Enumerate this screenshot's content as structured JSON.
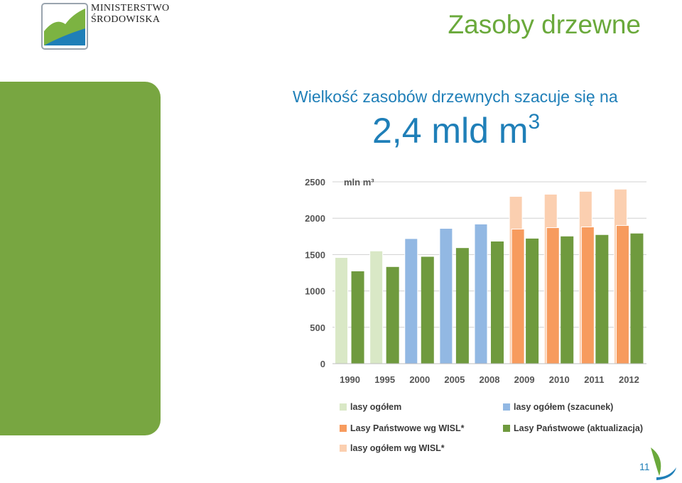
{
  "logo": {
    "line1": "MINISTERSTWO",
    "line2": "ŚRODOWISKA"
  },
  "title": "Zasoby drzewne",
  "subtitle": "Wielkość zasobów drzewnych szacuje się na",
  "value": {
    "text": "2,4 mld m",
    "sup": "3"
  },
  "page_number": "11",
  "colors": {
    "sidebar": "#78a641",
    "title": "#6aa93b",
    "accent_blue": "#1f7fb8"
  },
  "chart_data": {
    "type": "bar",
    "unit_label": "mln m³",
    "categories": [
      "1990",
      "1995",
      "2000",
      "2005",
      "2008",
      "2009",
      "2010",
      "2011",
      "2012"
    ],
    "ylim": [
      0,
      2500
    ],
    "yticks": [
      0,
      500,
      1000,
      1500,
      2000,
      2500
    ],
    "grid": true,
    "legend_position": "bottom",
    "series": [
      {
        "name": "lasy ogółem",
        "color": "#d9e8c6",
        "values": [
          1460,
          1550,
          null,
          null,
          null,
          null,
          null,
          null,
          null
        ]
      },
      {
        "name": "lasy ogółem (szacunek)",
        "color": "#92b8e3",
        "values": [
          null,
          null,
          1720,
          1860,
          1920,
          null,
          null,
          null,
          null
        ]
      },
      {
        "name": "lasy ogółem wg WISL*",
        "color": "#fbcfb0",
        "values": [
          null,
          null,
          null,
          null,
          null,
          2300,
          2330,
          2370,
          2400
        ]
      },
      {
        "name": "Lasy Państwowe wg WISL*",
        "color": "#f79b5e",
        "values": [
          null,
          null,
          null,
          null,
          null,
          1850,
          1870,
          1880,
          1900
        ]
      },
      {
        "name": "Lasy Państwowe (aktualizacja)",
        "color": "#6f9a3e",
        "values": [
          1270,
          1330,
          1470,
          1590,
          1680,
          1720,
          1750,
          1770,
          1790
        ]
      }
    ]
  }
}
